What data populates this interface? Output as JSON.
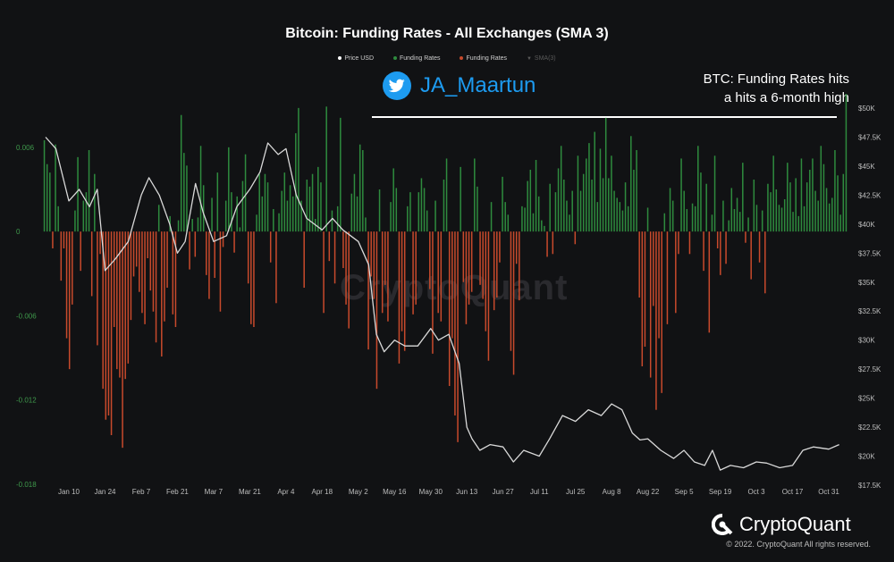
{
  "chart_data": {
    "type": "bar",
    "title": "Bitcoin: Funding Rates - All Exchanges (SMA 3)",
    "legend": [
      "Price USD",
      "Funding Rates",
      "Funding Rates",
      "SMA(3)"
    ],
    "legend_placement": "top-center",
    "x_ticks": [
      "Jan 10",
      "Jan 24",
      "Feb 7",
      "Feb 21",
      "Mar 7",
      "Mar 21",
      "Apr 4",
      "Apr 18",
      "May 2",
      "May 16",
      "May 30",
      "Jun 13",
      "Jun 27",
      "Jul 11",
      "Jul 25",
      "Aug 8",
      "Aug 22",
      "Sep 5",
      "Sep 19",
      "Oct 3",
      "Oct 17",
      "Oct 31"
    ],
    "left_axis": {
      "label": "Funding Rates",
      "ticks": [
        "0.006",
        "0",
        "-0.006",
        "-0.012",
        "-0.018"
      ],
      "ylim": [
        -0.018,
        0.01
      ]
    },
    "right_axis": {
      "label": "Price USD",
      "ticks": [
        "$50K",
        "$47.5K",
        "$45K",
        "$42.5K",
        "$40K",
        "$37.5K",
        "$35K",
        "$32.5K",
        "$30K",
        "$27.5K",
        "$25K",
        "$22.5K",
        "$20K",
        "$17.5K"
      ],
      "ylim": [
        17500,
        50000
      ]
    },
    "grid": false,
    "series": [
      {
        "name": "Funding Rates",
        "color_pos": "#2e8b3e",
        "color_neg": "#c84a2c",
        "values": [
          0.0065,
          0.0048,
          0.0042,
          -0.0012,
          0.0062,
          0.0018,
          -0.0035,
          -0.0012,
          -0.0076,
          -0.0098,
          -0.0052,
          0.0015,
          0.0053,
          -0.0028,
          0.0022,
          0.0028,
          0.0058,
          -0.0046,
          0.0041,
          -0.0081,
          -0.0016,
          -0.0112,
          -0.0134,
          -0.0131,
          -0.0145,
          -0.0068,
          -0.0098,
          -0.0104,
          -0.0154,
          -0.0105,
          -0.0094,
          -0.0063,
          -0.0032,
          -0.0025,
          -0.0043,
          -0.0058,
          -0.0066,
          -0.0019,
          -0.0042,
          -0.0057,
          -0.0079,
          0.0019,
          -0.0089,
          -0.0064,
          -0.004,
          0.0011,
          -0.0059,
          -0.0068,
          0.0008,
          0.0083,
          0.0056,
          0.0047,
          -0.0027,
          0.0009,
          -0.0018,
          0.001,
          0.0061,
          0.0033,
          -0.0031,
          -0.0048,
          0.0024,
          -0.0033,
          0.0042,
          -0.0057,
          -0.0011,
          0.0022,
          0.006,
          0.0028,
          -0.0015,
          0.0025,
          0.0003,
          0.0036,
          0.0055,
          -0.0037,
          -0.0066,
          -0.0068,
          0.0012,
          0.0041,
          0.0025,
          0.0041,
          0.0035,
          -0.0022,
          0.0016,
          -0.0051,
          0.0013,
          0.0029,
          0.0042,
          0.0022,
          0.0033,
          0.0025,
          0.007,
          0.0088,
          0.0022,
          -0.004,
          0.0037,
          0.0032,
          0.0041,
          0.0009,
          0.0046,
          0.0035,
          -0.0058,
          0.0089,
          -0.0021,
          0.0015,
          -0.0037,
          0.0018,
          0.0081,
          -0.0026,
          -0.0052,
          -0.0069,
          0.0027,
          0.0041,
          0.0025,
          0.0062,
          0.0058,
          0.001,
          -0.0084,
          -0.0032,
          -0.0048,
          -0.0112,
          0.003,
          -0.0058,
          -0.0038,
          -0.0064,
          0.0021,
          0.0045,
          0.0031,
          -0.0094,
          -0.0071,
          -0.0085,
          0.0018,
          0.0028,
          -0.0059,
          -0.0052,
          0.0028,
          0.0038,
          0.0031,
          0.0015,
          -0.0041,
          -0.0087,
          0.0022,
          -0.0058,
          -0.0064,
          0.0037,
          0.0052,
          -0.011,
          -0.0076,
          -0.0131,
          -0.015,
          0.0046,
          -0.0036,
          -0.0066,
          -0.0052,
          -0.0043,
          0.0052,
          0.0032,
          -0.0038,
          -0.0048,
          -0.0071,
          -0.0092,
          0.0021,
          -0.0056,
          -0.0047,
          -0.0022,
          0.0039,
          0.0021,
          0.0012,
          -0.0085,
          -0.0102,
          -0.0023,
          -0.0049,
          0.0018,
          0.0017,
          0.0036,
          0.0044,
          0.0013,
          0.0051,
          0.0025,
          0.0008,
          0.0004,
          -0.0018,
          0.0034,
          -0.0016,
          0.0028,
          0.0045,
          0.0061,
          0.0037,
          0.0022,
          0.0012,
          0.0029,
          -0.0009,
          0.0054,
          0.0029,
          0.0041,
          0.0052,
          0.0063,
          0.0037,
          0.0071,
          0.0021,
          0.0059,
          0.0038,
          0.0081,
          0.0038,
          0.0054,
          0.0029,
          0.0024,
          0.0021,
          0.0015,
          0.0035,
          0.0018,
          0.0068,
          0.0044,
          0.0058,
          -0.0047,
          -0.0096,
          -0.0082,
          0.0017,
          -0.0104,
          -0.0053,
          -0.0127,
          -0.0076,
          -0.0115,
          0.0013,
          -0.0066,
          0.0031,
          0.0022,
          -0.0058,
          -0.0016,
          0.0052,
          0.0029,
          0.0016,
          -0.0016,
          0.002,
          0.0018,
          0.0061,
          0.0042,
          -0.0028,
          0.0034,
          -0.0072,
          0.0012,
          0.0054,
          -0.0012,
          -0.0031,
          0.0022,
          -0.0023,
          0.0008,
          0.0031,
          0.0016,
          0.0024,
          0.0014,
          0.0049,
          -0.0008,
          0.001,
          -0.0034,
          0.0037,
          0.0019,
          -0.0022,
          0.0015,
          -0.0044,
          0.0034,
          0.0028,
          0.0054,
          0.003,
          0.0019,
          0.0017,
          0.0023,
          0.0049,
          0.0035,
          0.0014,
          0.0038,
          0.0011,
          0.0052,
          0.0018,
          0.0035,
          0.0044,
          0.0052,
          0.0029,
          0.0022,
          0.0061,
          0.0048,
          0.0031,
          0.002,
          0.0024,
          0.0058,
          0.004,
          0.0012,
          0.0041,
          0.0098
        ]
      },
      {
        "name": "Price USD",
        "color": "#d9d9d9",
        "x_dates": [
          "Jan 1",
          "Jan 5",
          "Jan 10",
          "Jan 14",
          "Jan 18",
          "Jan 21",
          "Jan 24",
          "Jan 28",
          "Feb 2",
          "Feb 7",
          "Feb 10",
          "Feb 14",
          "Feb 18",
          "Feb 21",
          "Feb 24",
          "Feb 28",
          "Mar 3",
          "Mar 7",
          "Mar 12",
          "Mar 16",
          "Mar 21",
          "Mar 25",
          "Mar 28",
          "Apr 1",
          "Apr 4",
          "Apr 8",
          "Apr 12",
          "Apr 18",
          "Apr 22",
          "Apr 26",
          "May 2",
          "May 6",
          "May 9",
          "May 12",
          "May 16",
          "May 20",
          "May 25",
          "May 30",
          "Jun 2",
          "Jun 6",
          "Jun 10",
          "Jun 13",
          "Jun 15",
          "Jun 18",
          "Jun 22",
          "Jun 27",
          "Jul 1",
          "Jul 5",
          "Jul 11",
          "Jul 15",
          "Jul 20",
          "Jul 25",
          "Jul 30",
          "Aug 4",
          "Aug 8",
          "Aug 12",
          "Aug 16",
          "Aug 19",
          "Aug 22",
          "Aug 27",
          "Sep 1",
          "Sep 5",
          "Sep 9",
          "Sep 13",
          "Sep 16",
          "Sep 19",
          "Sep 23",
          "Sep 28",
          "Oct 3",
          "Oct 7",
          "Oct 12",
          "Oct 17",
          "Oct 21",
          "Oct 25",
          "Oct 31",
          "Nov 4"
        ],
        "values": [
          47500,
          46500,
          42000,
          43000,
          41500,
          43000,
          36000,
          37000,
          38500,
          42500,
          44000,
          42500,
          40000,
          37500,
          38500,
          43500,
          41000,
          38500,
          39000,
          41500,
          43000,
          44500,
          47000,
          46000,
          46500,
          42500,
          40500,
          39500,
          40500,
          39500,
          38500,
          36500,
          30500,
          29000,
          30000,
          29500,
          29500,
          31000,
          30000,
          30500,
          28000,
          22500,
          21500,
          20500,
          21000,
          20800,
          19500,
          20500,
          20000,
          21500,
          23500,
          23000,
          24000,
          23500,
          24500,
          24000,
          22000,
          21400,
          21500,
          20500,
          19800,
          20500,
          19500,
          19200,
          20500,
          18800,
          19200,
          19000,
          19500,
          19400,
          19000,
          19200,
          20500,
          20800,
          20600,
          21000
        ]
      }
    ]
  },
  "annotation": [
    "BTC: Funding  Rates hits",
    "a hits a 6-month high"
  ],
  "twitter_handle": "JA_Maartun",
  "watermark": "CryptoQuant",
  "brand": "CryptoQuant",
  "copyright": "© 2022. CryptoQuant All rights reserved."
}
